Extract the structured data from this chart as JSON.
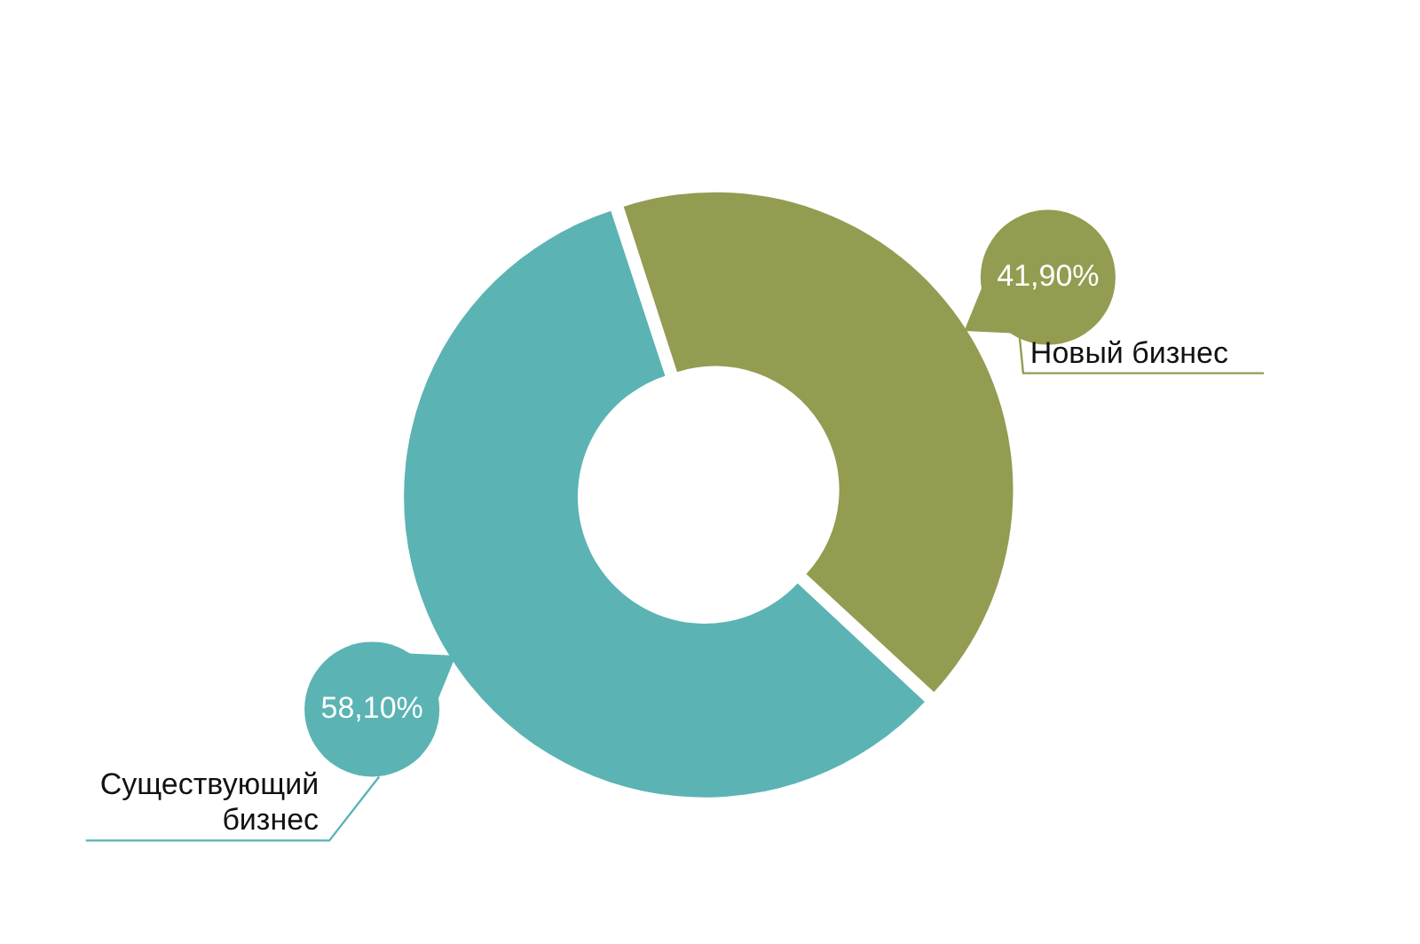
{
  "chart_data": {
    "type": "donut",
    "categories": [
      "Новый бизнес",
      "Существующий бизнес"
    ],
    "values": [
      41.9,
      58.1
    ],
    "colors": [
      "#939c50",
      "#5bb3b4"
    ],
    "value_labels": [
      "41,90%",
      "58,10%"
    ],
    "legend": false
  }
}
